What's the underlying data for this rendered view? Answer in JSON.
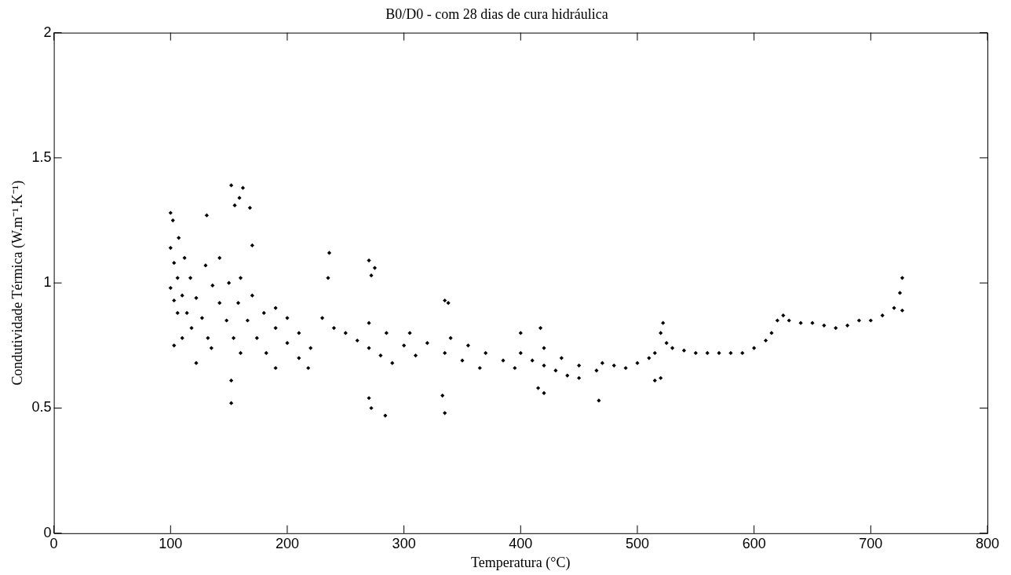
{
  "chart_data": {
    "type": "scatter",
    "title": "B0/D0 - com 28 dias de cura hidráulica",
    "xlabel": "Temperatura (°C)",
    "ylabel": "Condutividade Térmica (W.m⁻¹.K⁻¹)",
    "x": [
      100,
      103,
      106,
      110,
      114,
      118,
      100,
      103,
      106,
      107,
      112,
      117,
      122,
      127,
      132,
      135,
      130,
      136,
      142,
      148,
      154,
      160,
      142,
      150,
      158,
      166,
      174,
      182,
      190,
      160,
      170,
      180,
      190,
      200,
      210,
      218,
      190,
      200,
      210,
      220,
      230,
      240,
      250,
      260,
      270,
      280,
      290,
      270,
      285,
      300,
      310,
      305,
      320,
      335,
      350,
      365,
      340,
      355,
      370,
      385,
      395,
      400,
      410,
      420,
      430,
      440,
      450,
      420,
      435,
      450,
      465,
      470,
      480,
      490,
      500,
      510,
      515,
      520,
      522,
      525,
      530,
      540,
      550,
      560,
      570,
      580,
      590,
      600,
      610,
      615,
      620,
      625,
      630,
      640,
      650,
      660,
      670,
      680,
      690,
      700,
      710,
      720,
      725,
      727,
      727,
      100,
      102,
      131,
      152,
      155,
      159,
      162,
      168,
      170,
      110,
      103,
      122,
      152,
      152,
      236,
      235,
      270,
      275,
      272,
      270,
      272,
      284,
      335,
      338,
      333,
      335,
      420,
      415,
      467,
      520,
      515,
      400,
      417
    ],
    "values": [
      1.14,
      1.08,
      1.02,
      0.95,
      0.88,
      0.82,
      0.98,
      0.93,
      0.88,
      1.18,
      1.1,
      1.02,
      0.94,
      0.86,
      0.78,
      0.74,
      1.07,
      0.99,
      0.92,
      0.85,
      0.78,
      0.72,
      1.1,
      1.0,
      0.92,
      0.85,
      0.78,
      0.72,
      0.66,
      1.02,
      0.95,
      0.88,
      0.82,
      0.76,
      0.7,
      0.66,
      0.9,
      0.86,
      0.8,
      0.74,
      0.86,
      0.82,
      0.8,
      0.77,
      0.74,
      0.71,
      0.68,
      0.84,
      0.8,
      0.75,
      0.71,
      0.8,
      0.76,
      0.72,
      0.69,
      0.66,
      0.78,
      0.75,
      0.72,
      0.69,
      0.66,
      0.72,
      0.69,
      0.67,
      0.65,
      0.63,
      0.62,
      0.74,
      0.7,
      0.67,
      0.65,
      0.68,
      0.67,
      0.66,
      0.68,
      0.7,
      0.72,
      0.8,
      0.84,
      0.76,
      0.74,
      0.73,
      0.72,
      0.72,
      0.72,
      0.72,
      0.72,
      0.74,
      0.77,
      0.8,
      0.85,
      0.87,
      0.85,
      0.84,
      0.84,
      0.83,
      0.82,
      0.83,
      0.85,
      0.85,
      0.87,
      0.9,
      0.96,
      1.02,
      0.89,
      1.28,
      1.25,
      1.27,
      1.39,
      1.31,
      1.34,
      1.38,
      1.3,
      1.15,
      0.78,
      0.75,
      0.68,
      0.61,
      0.52,
      1.12,
      1.02,
      1.09,
      1.06,
      1.03,
      0.54,
      0.5,
      0.47,
      0.93,
      0.92,
      0.55,
      0.48,
      0.56,
      0.58,
      0.53,
      0.62,
      0.61,
      0.8,
      0.82
    ],
    "color": "#000000",
    "marker": "diamond",
    "grid": false,
    "xlim": [
      0,
      800
    ],
    "xticks": [
      0,
      100,
      200,
      300,
      400,
      500,
      600,
      700,
      800
    ],
    "ylim": [
      0,
      2
    ],
    "yticks": [
      0,
      0.5,
      1,
      1.5,
      2
    ]
  }
}
